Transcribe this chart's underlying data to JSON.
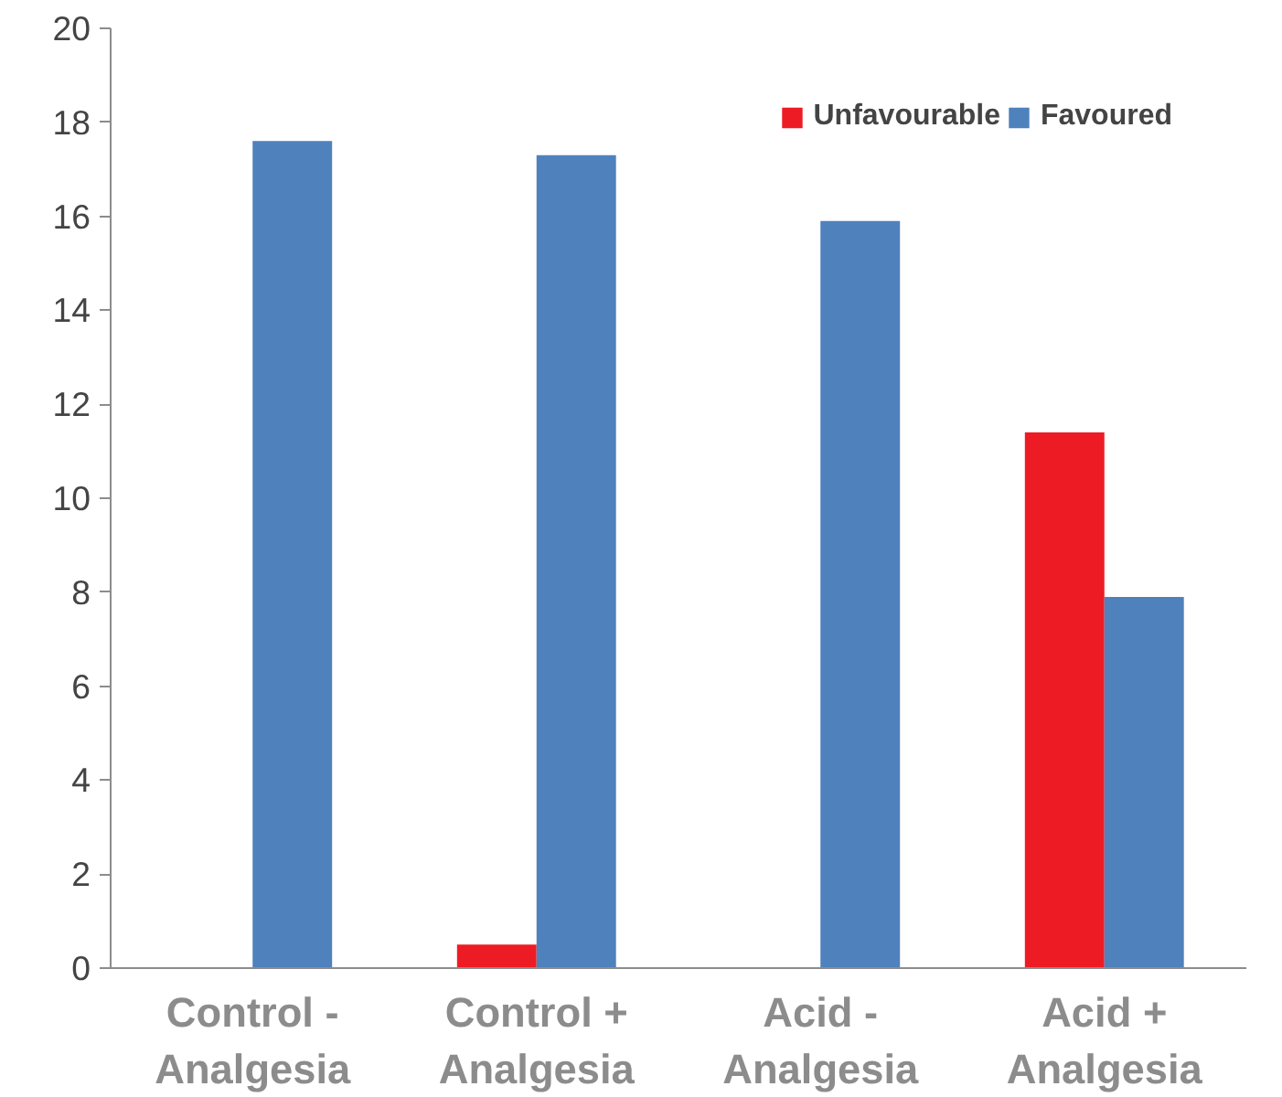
{
  "chart_data": {
    "type": "bar",
    "categories": [
      "Control -\nAnalgesia",
      "Control +\nAnalgesia",
      "Acid -\nAnalgesia",
      "Acid +\nAnalgesia"
    ],
    "series": [
      {
        "name": "Unfavourable",
        "color": "#ed1c24",
        "values": [
          0,
          0.5,
          0,
          11.4
        ]
      },
      {
        "name": "Favoured",
        "color": "#4f81bd",
        "values": [
          17.6,
          17.3,
          15.9,
          7.9
        ]
      }
    ],
    "ylim": [
      0,
      20
    ],
    "yticks": [
      0,
      2,
      4,
      6,
      8,
      10,
      12,
      14,
      16,
      18,
      20
    ],
    "grid": false,
    "legend": "top right"
  }
}
